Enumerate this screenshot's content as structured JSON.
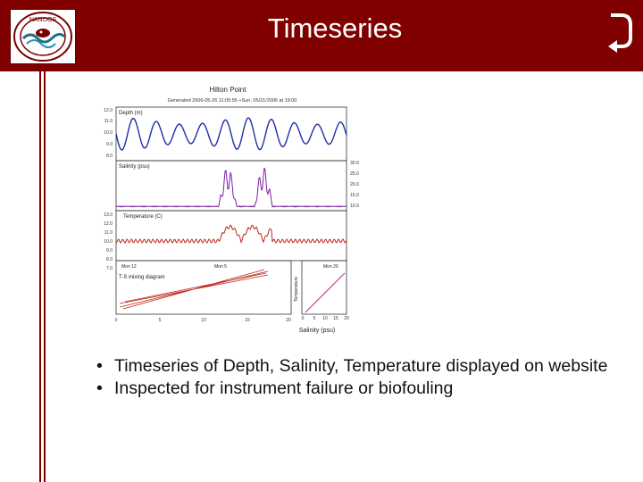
{
  "slide": {
    "title": "Timeseries",
    "colors": {
      "banner": "#800000",
      "title_text": "#ffffff",
      "depth_line": "#1e2fa8",
      "salinity_line": "#7a1fa0",
      "temperature_line": "#c0281e",
      "ts_line": "#c0281e"
    },
    "bullets": [
      "Timeseries of Depth, Salinity, Temperature displayed on website",
      "Inspected for instrument failure or biofouling"
    ]
  },
  "logo": {
    "text": "NANOOS",
    "icon": "nanoos-logo"
  },
  "nav": {
    "icon": "return-arrow-icon"
  },
  "figure": {
    "title": "Hilton Point",
    "subtitle": "Generated 2006-05-26 11:05:55 +Sun, 05/21/2006 at 19:00",
    "panel_labels": [
      "Depth (m)",
      "Salinity (psu)",
      "Temperature (C)",
      "T-S mixing diagram"
    ],
    "left_ticks_1": [
      "12.0",
      "11.0",
      "10.0",
      "9.0",
      "8.0"
    ],
    "right_ticks_2": [
      "30.0",
      "25.0",
      "20.0",
      "15.0",
      "10.0"
    ],
    "left_ticks_3": [
      "13.0",
      "12.0",
      "11.0",
      "10.0",
      "9.0",
      "8.0",
      "7.0"
    ],
    "x_ticks_left": [
      "0",
      "5",
      "10",
      "15",
      "20"
    ],
    "x_ticks_right": [
      "0",
      "5",
      "10",
      "15",
      "20"
    ],
    "x_label": "Salinity (psu)",
    "y_label_right": "Temperature",
    "annotations": [
      "Mon 12",
      "Mon 5",
      "Mon 20"
    ]
  }
}
